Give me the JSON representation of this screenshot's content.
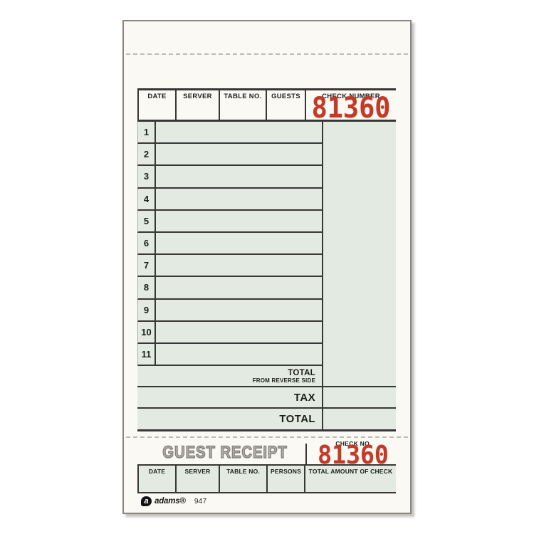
{
  "guest_check": {
    "header": {
      "columns": [
        "DATE",
        "SERVER",
        "TABLE NO.",
        "GUESTS"
      ],
      "check_number_label": "CHECK NUMBER",
      "check_number": "81360"
    },
    "line_numbers": [
      "1",
      "2",
      "3",
      "4",
      "5",
      "6",
      "7",
      "8",
      "9",
      "10",
      "11"
    ],
    "totals": {
      "subtotal_label": "TOTAL",
      "subtotal_sublabel": "FROM REVERSE SIDE",
      "tax_label": "TAX",
      "total_label": "TOTAL"
    }
  },
  "guest_receipt": {
    "title": "GUEST RECEIPT",
    "check_no_label": "CHECK NO.",
    "check_number": "81360",
    "columns": [
      "DATE",
      "SERVER",
      "TABLE NO.",
      "PERSONS",
      "TOTAL AMOUNT OF CHECK"
    ],
    "brand": {
      "logo_letter": "a",
      "name": "adams®",
      "form_number": "947"
    }
  },
  "colors": {
    "paper": "#faf9f4",
    "cell_green": "#e3eae2",
    "rule_line": "#373735",
    "stamp_red": "#c23a28",
    "title_gray": "#8f8c86"
  }
}
